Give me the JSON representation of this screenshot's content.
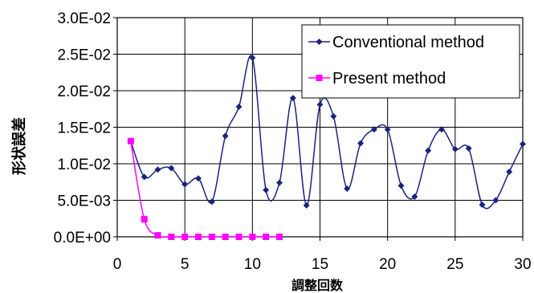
{
  "chart_data": {
    "type": "line",
    "xlabel": "調整回数",
    "ylabel": "形状誤差",
    "xlim": [
      0,
      30
    ],
    "ylim": [
      0,
      0.03
    ],
    "x_ticks": [
      "0",
      "5",
      "10",
      "15",
      "20",
      "25",
      "30"
    ],
    "y_ticks": [
      "0.0E+00",
      "5.0E-03",
      "1.0E-02",
      "1.5E-02",
      "2.0E-02",
      "2.5E-02",
      "3.0E-02"
    ],
    "grid": true,
    "legend_position": "top-right",
    "series": [
      {
        "name": "Conventional method",
        "color": "#1a237e",
        "marker": "diamond",
        "x": [
          1,
          2,
          3,
          4,
          5,
          6,
          7,
          8,
          9,
          10,
          11,
          12,
          13,
          14,
          15,
          16,
          17,
          18,
          19,
          20,
          21,
          22,
          23,
          24,
          25,
          26,
          27,
          28,
          29,
          30
        ],
        "values": [
          0.0131,
          0.0082,
          0.0092,
          0.0094,
          0.0072,
          0.008,
          0.0048,
          0.0138,
          0.0178,
          0.0245,
          0.0064,
          0.0074,
          0.019,
          0.0043,
          0.0181,
          0.0165,
          0.0066,
          0.0128,
          0.0147,
          0.0147,
          0.007,
          0.0055,
          0.0118,
          0.0147,
          0.012,
          0.0121,
          0.0044,
          0.005,
          0.0089,
          0.0127
        ]
      },
      {
        "name": "Present method",
        "color": "#ff00ff",
        "marker": "square",
        "x": [
          1,
          2,
          3,
          4,
          5,
          6,
          7,
          8,
          9,
          10,
          11,
          12
        ],
        "values": [
          0.0131,
          0.0024,
          0.0002,
          0.0,
          0.0,
          0.0,
          0.0,
          0.0,
          0.0,
          0.0,
          0.0,
          0.0
        ]
      }
    ]
  }
}
